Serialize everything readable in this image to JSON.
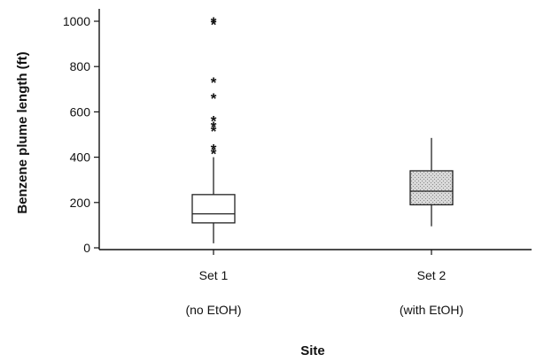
{
  "chart_data": {
    "type": "box",
    "ylabel": "Benzene plume length (ft)",
    "xlabel": "Site",
    "ylim": [
      0,
      1000
    ],
    "yticks": [
      "0",
      "200",
      "400",
      "600",
      "800",
      "1000"
    ],
    "grid": false,
    "categories": [
      {
        "line1": "Set 1",
        "line2": "(no EtOH)"
      },
      {
        "line1": "Set 2",
        "line2": "(with EtOH)"
      }
    ],
    "boxes": [
      {
        "min": 20,
        "q1": 110,
        "median": 150,
        "q3": 235,
        "max": 400,
        "outliers": [
          420,
          440,
          520,
          540,
          565,
          665,
          735,
          990,
          1000
        ],
        "fill": "#ffffff"
      },
      {
        "min": 95,
        "q1": 190,
        "median": 250,
        "q3": 340,
        "max": 485,
        "outliers": [],
        "fill": "#d4d4d4"
      }
    ]
  }
}
